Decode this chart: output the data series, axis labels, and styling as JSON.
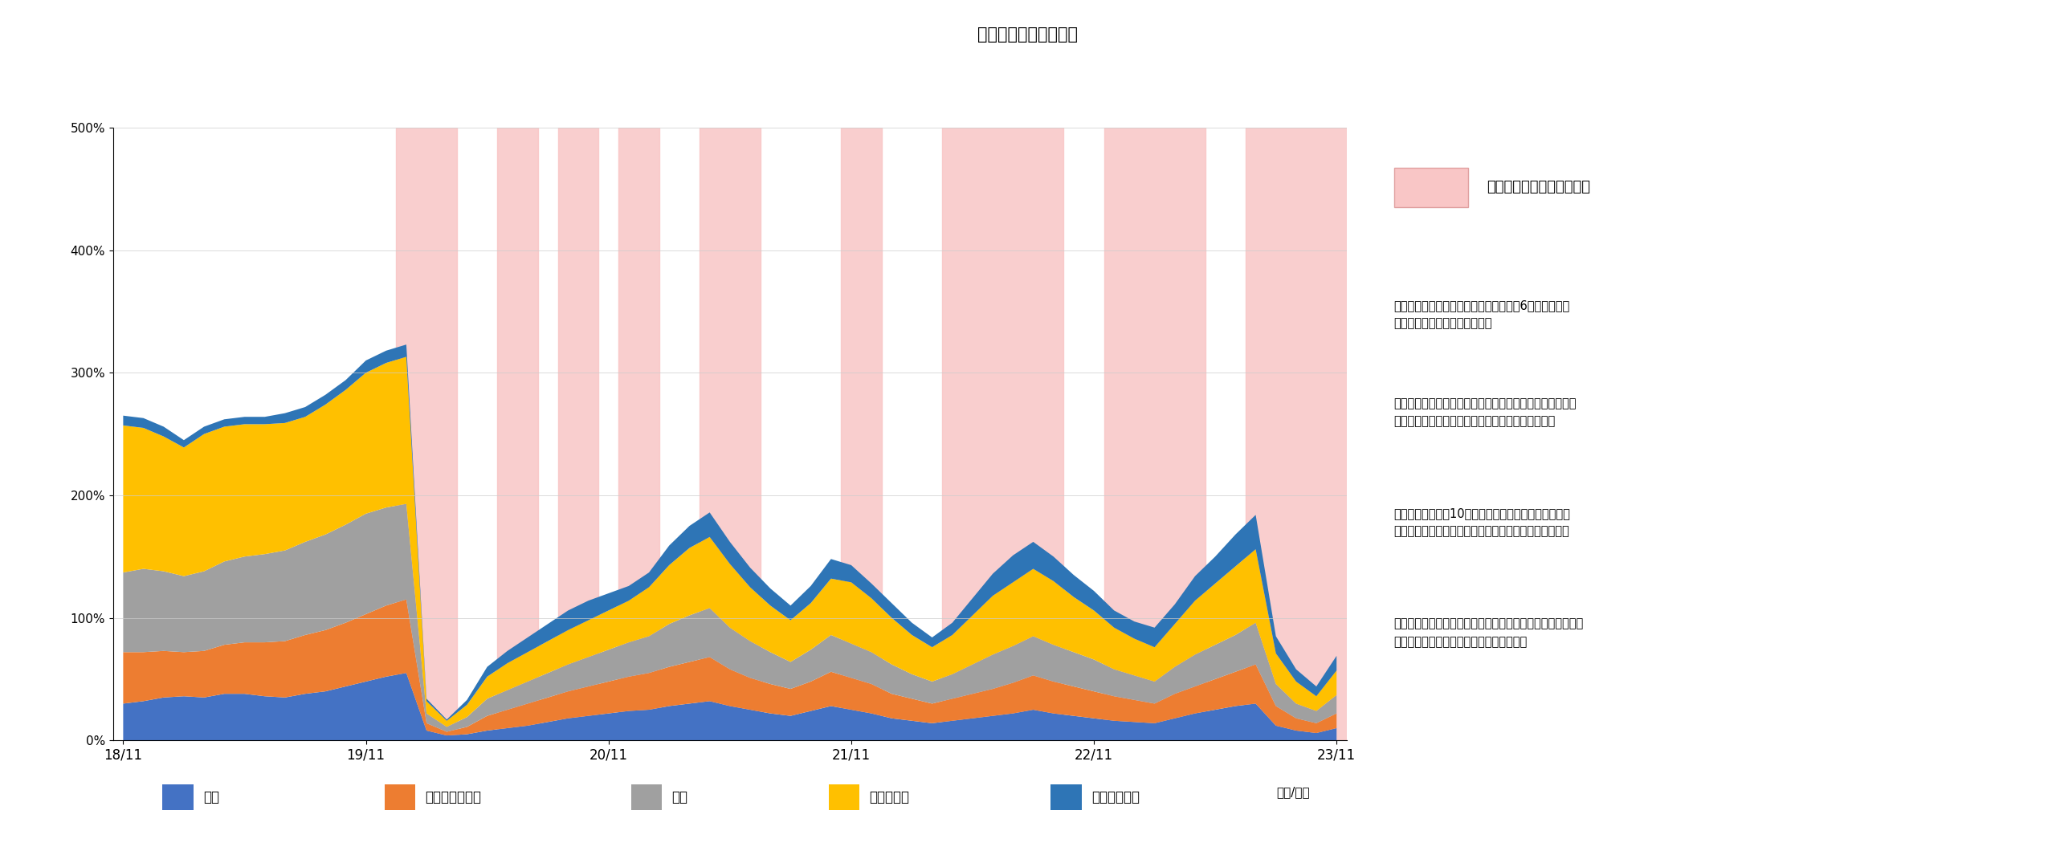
{
  "title": "セクター別配分の推移",
  "xlabel": "（年/月）",
  "ylim": [
    0,
    500
  ],
  "yticks": [
    0,
    100,
    200,
    300,
    400,
    500
  ],
  "ytick_labels": [
    "0%",
    "100%",
    "200%",
    "300%",
    "400%",
    "500%"
  ],
  "xtick_labels": [
    "18/11",
    "19/11",
    "20/11",
    "21/11",
    "22/11",
    "23/11"
  ],
  "xtick_positions": [
    0,
    12,
    24,
    36,
    48,
    60
  ],
  "background_color": "#ffffff",
  "plot_bg_color": "#ffffff",
  "header_bg_color": "#b8d4e8",
  "title_fontsize": 15,
  "legend_labels": [
    "株式",
    "インフレ連動債",
    "社債",
    "債券・金利",
    "コモディティ"
  ],
  "colors": [
    "#4472c4",
    "#ed7d31",
    "#a0a0a0",
    "#ffc000",
    "#2e75b6"
  ],
  "brake_color": "#f9c6c6",
  "brake_label": "ブレーキ発動タイミング＊",
  "annotation1": "＊当月のブレーキ発動状況については、6ページの運用\n経過コメントをご覧ください。",
  "annotation2": "・ブレーキ発動タイミングは、月中でブレーキが発動して\nいた際に、月単位で発動の有無を開示しています。",
  "annotation3": "・ブレーキ発動は10分毎に株式と債券の価格動向を分\n析し、相関が高まり同時に下落する局面で発動します。",
  "annotation4": "・ブレーキの発動タイミングが必ずしもファンドへプラスの\nパフォーマンスを与えるとは限りません。",
  "brake_periods": [
    [
      14,
      16
    ],
    [
      19,
      20
    ],
    [
      22,
      23
    ],
    [
      25,
      26
    ],
    [
      29,
      31
    ],
    [
      36,
      37
    ],
    [
      41,
      46
    ],
    [
      49,
      53
    ],
    [
      56,
      61
    ]
  ],
  "equities": [
    30,
    32,
    35,
    36,
    35,
    38,
    38,
    36,
    35,
    38,
    40,
    44,
    48,
    52,
    55,
    8,
    4,
    5,
    8,
    10,
    12,
    15,
    18,
    20,
    22,
    24,
    25,
    28,
    30,
    32,
    28,
    25,
    22,
    20,
    24,
    28,
    25,
    22,
    18,
    16,
    14,
    16,
    18,
    20,
    22,
    25,
    22,
    20,
    18,
    16,
    15,
    14,
    18,
    22,
    25,
    28,
    30,
    12,
    8,
    6,
    10
  ],
  "inflation_linked": [
    42,
    40,
    38,
    36,
    38,
    40,
    42,
    44,
    46,
    48,
    50,
    52,
    55,
    58,
    60,
    6,
    3,
    6,
    12,
    15,
    18,
    20,
    22,
    24,
    26,
    28,
    30,
    32,
    34,
    36,
    30,
    26,
    24,
    22,
    24,
    28,
    26,
    24,
    20,
    18,
    16,
    18,
    20,
    22,
    25,
    28,
    26,
    24,
    22,
    20,
    18,
    16,
    20,
    22,
    25,
    28,
    32,
    16,
    10,
    8,
    12
  ],
  "corporate_bonds": [
    65,
    68,
    65,
    62,
    65,
    68,
    70,
    72,
    74,
    76,
    78,
    80,
    82,
    80,
    78,
    8,
    4,
    8,
    14,
    16,
    18,
    20,
    22,
    24,
    26,
    28,
    30,
    35,
    38,
    40,
    34,
    30,
    26,
    22,
    26,
    30,
    28,
    26,
    24,
    20,
    18,
    20,
    24,
    28,
    30,
    32,
    30,
    28,
    26,
    22,
    20,
    18,
    22,
    26,
    28,
    30,
    34,
    18,
    12,
    10,
    15
  ],
  "bonds_rates": [
    120,
    115,
    110,
    105,
    112,
    110,
    108,
    106,
    104,
    102,
    106,
    110,
    115,
    118,
    120,
    10,
    5,
    10,
    18,
    22,
    24,
    26,
    28,
    30,
    32,
    34,
    40,
    48,
    55,
    58,
    52,
    44,
    38,
    34,
    38,
    46,
    50,
    44,
    38,
    32,
    28,
    32,
    40,
    48,
    52,
    55,
    52,
    45,
    40,
    34,
    30,
    28,
    35,
    44,
    50,
    56,
    60,
    25,
    18,
    12,
    20
  ],
  "commodities": [
    8,
    8,
    8,
    6,
    6,
    6,
    6,
    6,
    8,
    8,
    8,
    8,
    10,
    10,
    10,
    2,
    1,
    4,
    8,
    10,
    12,
    14,
    16,
    16,
    14,
    12,
    12,
    16,
    18,
    20,
    18,
    16,
    14,
    12,
    14,
    16,
    14,
    12,
    12,
    10,
    8,
    10,
    14,
    18,
    22,
    22,
    20,
    18,
    16,
    14,
    14,
    16,
    16,
    20,
    22,
    26,
    28,
    14,
    10,
    8,
    12
  ]
}
